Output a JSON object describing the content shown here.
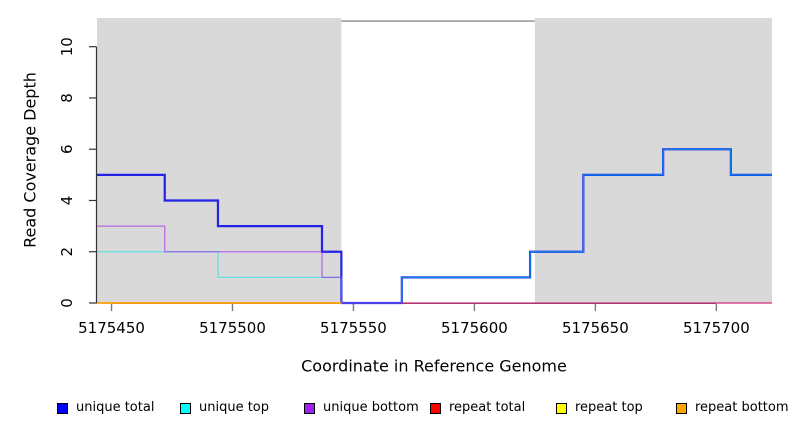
{
  "figure": {
    "x_axis": {
      "title": "Coordinate in Reference Genome",
      "ticks": [
        5175450,
        5175500,
        5175550,
        5175600,
        5175650,
        5175700
      ]
    },
    "y_axis": {
      "title": "Read Coverage Depth",
      "ticks": [
        0,
        2,
        4,
        6,
        8,
        10
      ]
    },
    "legend": [
      {
        "label": "unique total",
        "color": "#0000FF"
      },
      {
        "label": "unique top",
        "color": "#00FFFF"
      },
      {
        "label": "unique bottom",
        "color": "#A020F0"
      },
      {
        "label": "repeat total",
        "color": "#FF0000"
      },
      {
        "label": "repeat top",
        "color": "#FFFF00"
      },
      {
        "label": "repeat bottom",
        "color": "#FFA500"
      }
    ]
  },
  "chart_data": {
    "type": "line",
    "step": true,
    "title": "",
    "xlabel": "Coordinate in Reference Genome",
    "ylabel": "Read Coverage Depth",
    "xlim": [
      5175444,
      5175723
    ],
    "ylim": [
      0,
      11.12
    ],
    "grid": false,
    "legend_position": "bottom",
    "shaded_regions": [
      {
        "x0": 5175444,
        "x1": 5175545,
        "color": "#D9D9D9",
        "name": "left-shaded-region"
      },
      {
        "x0": 5175625,
        "x1": 5175723,
        "color": "#D9D9D9",
        "name": "right-shaded-region"
      }
    ],
    "gap_top_line": {
      "x0": 5175545,
      "x1": 5175625,
      "y": 11.0,
      "color": "#8C8C8C"
    },
    "series": [
      {
        "name": "unique total",
        "color": "#2222E8",
        "width": 2.2,
        "opacity": 1,
        "points": [
          [
            5175444,
            5
          ],
          [
            5175472,
            4
          ],
          [
            5175494,
            3
          ],
          [
            5175537,
            2
          ],
          [
            5175545,
            0
          ],
          [
            5175570,
            1
          ],
          [
            5175623,
            2
          ],
          [
            5175645,
            5
          ],
          [
            5175678,
            6
          ],
          [
            5175706,
            5
          ],
          [
            5175723,
            5
          ]
        ]
      },
      {
        "name": "unique top",
        "color": "#00E8E8",
        "width": 1.3,
        "opacity": 0.55,
        "points": [
          [
            5175444,
            2
          ],
          [
            5175494,
            1
          ],
          [
            5175545,
            0
          ],
          [
            5175570,
            1
          ],
          [
            5175623,
            2
          ],
          [
            5175645,
            5
          ],
          [
            5175678,
            6
          ],
          [
            5175706,
            5
          ],
          [
            5175723,
            5
          ]
        ]
      },
      {
        "name": "unique bottom",
        "color": "#A020F0",
        "width": 1.3,
        "opacity": 0.6,
        "points": [
          [
            5175444,
            3
          ],
          [
            5175472,
            2
          ],
          [
            5175537,
            1
          ],
          [
            5175545,
            0
          ],
          [
            5175723,
            0
          ]
        ]
      },
      {
        "name": "repeat total",
        "color": "#E03060",
        "width": 1.3,
        "opacity": 0.8,
        "points": [
          [
            5175570,
            0
          ],
          [
            5175723,
            0
          ]
        ]
      },
      {
        "name": "repeat top",
        "color": "#FFFF00",
        "width": 1.3,
        "opacity": 1,
        "points": [
          [
            5175444,
            0
          ],
          [
            5175545,
            0
          ]
        ]
      },
      {
        "name": "repeat bottom",
        "color": "#FFA010",
        "width": 1.8,
        "opacity": 1,
        "points": [
          [
            5175444,
            0
          ],
          [
            5175545,
            0
          ]
        ]
      }
    ]
  }
}
